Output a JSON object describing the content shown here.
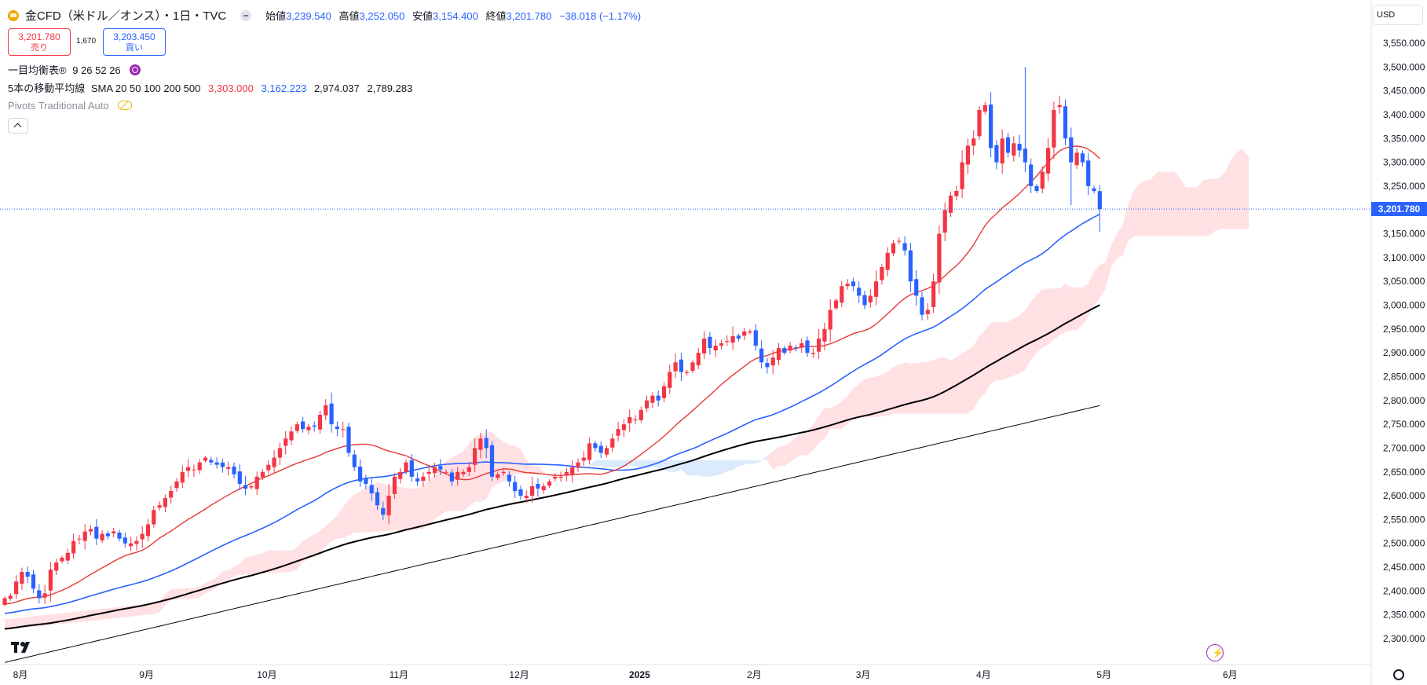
{
  "header": {
    "symbol_title": "金CFD（米ドル／オンス）・1日・TVC",
    "open_label": "始値",
    "open_value": "3,239.540",
    "high_label": "高値",
    "high_value": "3,252.050",
    "low_label": "安値",
    "low_value": "3,154.400",
    "close_label": "終値",
    "close_value": "3,201.780",
    "change_value": "−38.018 (−1.17%)",
    "sell_price": "3,201.780",
    "sell_label": "売り",
    "spread": "1,670",
    "buy_price": "3,203.450",
    "buy_label": "買い"
  },
  "indicators": {
    "ichimoku_label": "一目均衡表®",
    "ichimoku_params": "9 26 52 26",
    "sma_label": "5本の移動平均線",
    "sma_params": "SMA 20 50 100 200 500",
    "sma_values": [
      "3,303.000",
      "3,162.223",
      "2,974.037",
      "2,789.283"
    ],
    "pivots_label": "Pivots Traditional Auto"
  },
  "currency": "USD",
  "last_price_tag": "3,201.780",
  "colors": {
    "up": "#f23645",
    "down": "#2962ff",
    "sma20": "#e53935",
    "sma50": "#2962ff",
    "sma100": "#000000",
    "sma200": "#000000",
    "cloud_bear": "#ffd6d9",
    "cloud_bull": "#cfe3fb"
  },
  "chart_data": {
    "type": "candlestick",
    "y_axis_ticks": [
      "3,550.000",
      "3,500.000",
      "3,450.000",
      "3,400.000",
      "3,350.000",
      "3,300.000",
      "3,250.000",
      "3,200.000",
      "3,150.000",
      "3,100.000",
      "3,050.000",
      "3,000.000",
      "2,950.000",
      "2,900.000",
      "2,850.000",
      "2,800.000",
      "2,750.000",
      "2,700.000",
      "2,650.000",
      "2,600.000",
      "2,550.000",
      "2,500.000",
      "2,450.000",
      "2,400.000",
      "2,350.000",
      "2,300.000"
    ],
    "ylim": [
      2270,
      3580
    ],
    "x_axis_labels": [
      {
        "label": "8月",
        "i": 0
      },
      {
        "label": "9月",
        "i": 22
      },
      {
        "label": "10月",
        "i": 43
      },
      {
        "label": "11月",
        "i": 66
      },
      {
        "label": "12月",
        "i": 87
      },
      {
        "label": "2025",
        "i": 108
      },
      {
        "label": "2月",
        "i": 128
      },
      {
        "label": "3月",
        "i": 147
      },
      {
        "label": "4月",
        "i": 168
      },
      {
        "label": "5月",
        "i": 189
      },
      {
        "label": "6月",
        "i": 211
      }
    ],
    "close": [
      2385,
      2390,
      2420,
      2440,
      2430,
      2405,
      2385,
      2395,
      2445,
      2460,
      2470,
      2480,
      2505,
      2510,
      2525,
      2530,
      2510,
      2520,
      2515,
      2525,
      2510,
      2500,
      2500,
      2505,
      2520,
      2540,
      2570,
      2580,
      2595,
      2610,
      2630,
      2650,
      2660,
      2655,
      2670,
      2680,
      2670,
      2665,
      2660,
      2660,
      2645,
      2625,
      2615,
      2620,
      2640,
      2650,
      2665,
      2680,
      2700,
      2720,
      2735,
      2750,
      2740,
      2745,
      2745,
      2770,
      2790,
      2750,
      2740,
      2740,
      2690,
      2660,
      2630,
      2625,
      2605,
      2580,
      2560,
      2600,
      2640,
      2650,
      2670,
      2640,
      2630,
      2640,
      2650,
      2660,
      2655,
      2650,
      2630,
      2650,
      2650,
      2660,
      2700,
      2720,
      2700,
      2640,
      2645,
      2650,
      2630,
      2610,
      2600,
      2600,
      2620,
      2615,
      2620,
      2630,
      2640,
      2640,
      2650,
      2660,
      2670,
      2680,
      2710,
      2700,
      2690,
      2700,
      2720,
      2740,
      2750,
      2765,
      2760,
      2780,
      2800,
      2810,
      2800,
      2830,
      2860,
      2880,
      2860,
      2860,
      2880,
      2900,
      2930,
      2910,
      2915,
      2920,
      2925,
      2935,
      2930,
      2945,
      2945,
      2915,
      2880,
      2870,
      2890,
      2910,
      2900,
      2915,
      2910,
      2920,
      2900,
      2900,
      2930,
      2950,
      2990,
      3010,
      3040,
      3045,
      3040,
      3020,
      3000,
      3020,
      3050,
      3080,
      3110,
      3130,
      3135,
      3115,
      3050,
      3020,
      2980,
      2990,
      3050,
      3150,
      3200,
      3230,
      3240,
      3300,
      3335,
      3350,
      3410,
      3420,
      3330,
      3300,
      3350,
      3320,
      3340,
      3325,
      3300,
      3250,
      3240,
      3280,
      3330,
      3410,
      3420,
      3350,
      3300,
      3320,
      3300,
      3250,
      3240,
      3201.78
    ],
    "sma": [
      {
        "name": "SMA 20",
        "value": "3,303.000"
      },
      {
        "name": "SMA 50",
        "value": "3,162.223"
      },
      {
        "name": "SMA 100",
        "value": "2,974.037"
      },
      {
        "name": "SMA 200",
        "value": "2,789.283"
      }
    ],
    "last_close": 3201.78
  }
}
